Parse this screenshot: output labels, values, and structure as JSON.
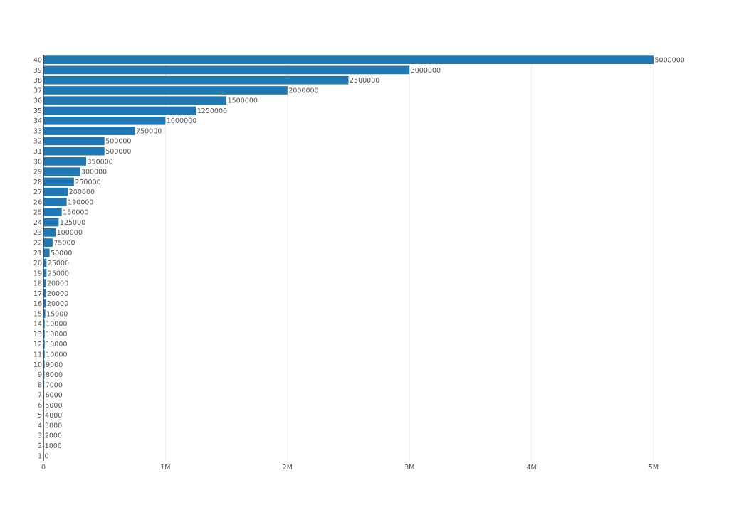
{
  "chart_data": {
    "type": "bar",
    "orientation": "horizontal",
    "title": "",
    "xlabel": "",
    "ylabel": "",
    "xlim": [
      0,
      5000000
    ],
    "grid": true,
    "x_ticks": [
      {
        "value": 0,
        "label": "0"
      },
      {
        "value": 1000000,
        "label": "1M"
      },
      {
        "value": 2000000,
        "label": "2M"
      },
      {
        "value": 3000000,
        "label": "3M"
      },
      {
        "value": 4000000,
        "label": "4M"
      },
      {
        "value": 5000000,
        "label": "5M"
      }
    ],
    "categories": [
      "1",
      "2",
      "3",
      "4",
      "5",
      "6",
      "7",
      "8",
      "9",
      "10",
      "11",
      "12",
      "13",
      "14",
      "15",
      "16",
      "17",
      "18",
      "19",
      "20",
      "21",
      "22",
      "23",
      "24",
      "25",
      "26",
      "27",
      "28",
      "29",
      "30",
      "31",
      "32",
      "33",
      "34",
      "35",
      "36",
      "37",
      "38",
      "39",
      "40"
    ],
    "values": [
      0,
      1000,
      2000,
      3000,
      4000,
      5000,
      6000,
      7000,
      8000,
      9000,
      10000,
      10000,
      10000,
      10000,
      15000,
      20000,
      20000,
      20000,
      25000,
      25000,
      50000,
      75000,
      100000,
      125000,
      150000,
      190000,
      200000,
      250000,
      300000,
      350000,
      500000,
      500000,
      750000,
      1000000,
      1250000,
      1500000,
      2000000,
      2500000,
      3000000,
      5000000
    ],
    "data_labels": [
      "0",
      "1000",
      "2000",
      "3000",
      "4000",
      "5000",
      "6000",
      "7000",
      "8000",
      "9000",
      "10000",
      "10000",
      "10000",
      "10000",
      "15000",
      "20000",
      "20000",
      "20000",
      "25000",
      "25000",
      "50000",
      "75000",
      "100000",
      "125000",
      "150000",
      "190000",
      "200000",
      "250000",
      "300000",
      "350000",
      "500000",
      "500000",
      "750000",
      "1000000",
      "1250000",
      "1500000",
      "2000000",
      "2500000",
      "3000000",
      "5000000"
    ],
    "bar_color": "#1f77b4"
  }
}
